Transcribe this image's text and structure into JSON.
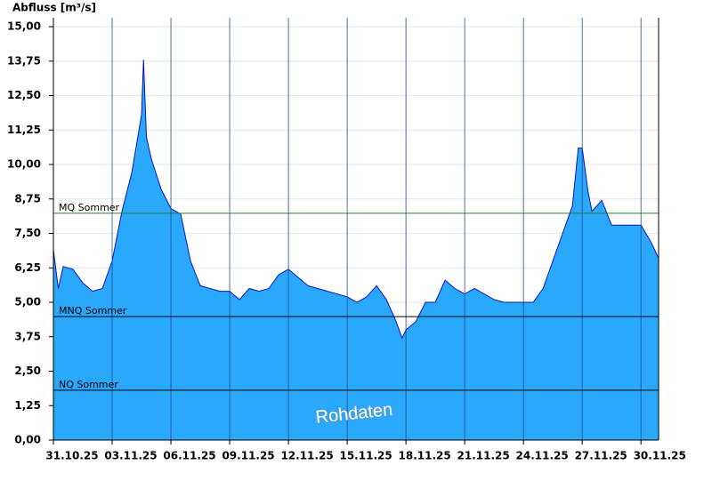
{
  "chart_data": {
    "type": "area",
    "y_label": "Abfluss [m³/s]",
    "watermark": "Rohdaten",
    "color": "#29a8fc",
    "line_color": "#0a14c8",
    "x": [
      0,
      0.25,
      0.5,
      1,
      1.5,
      2,
      2.5,
      3,
      3.5,
      4,
      4.5,
      4.6,
      4.75,
      5,
      5.5,
      6,
      6.5,
      7,
      7.5,
      8,
      8.5,
      9,
      9.5,
      10,
      10.5,
      11,
      11.5,
      12,
      12.5,
      13,
      13.5,
      14,
      14.5,
      15,
      15.5,
      16,
      16.5,
      17,
      17.5,
      17.8,
      18,
      18.5,
      19,
      19.5,
      20,
      20.5,
      21,
      21.5,
      22,
      22.5,
      23,
      23.5,
      24,
      24.5,
      25,
      25.5,
      26,
      26.5,
      26.8,
      27,
      27.3,
      27.5,
      28,
      28.5,
      29,
      29.5,
      30,
      30.5,
      30.9
    ],
    "values": [
      6.9,
      5.5,
      6.3,
      6.2,
      5.7,
      5.4,
      5.5,
      6.5,
      8.3,
      9.7,
      11.8,
      13.8,
      11.0,
      10.2,
      9.1,
      8.4,
      8.2,
      6.5,
      5.6,
      5.5,
      5.4,
      5.4,
      5.1,
      5.5,
      5.4,
      5.5,
      6.0,
      6.2,
      5.9,
      5.6,
      5.5,
      5.4,
      5.3,
      5.2,
      5.0,
      5.2,
      5.6,
      5.1,
      4.3,
      3.7,
      4.0,
      4.3,
      5.0,
      5.0,
      5.8,
      5.5,
      5.3,
      5.5,
      5.3,
      5.1,
      5.0,
      5.0,
      5.0,
      5.0,
      5.5,
      6.5,
      7.5,
      8.5,
      10.6,
      10.6,
      9.0,
      8.3,
      8.7,
      7.8,
      7.8,
      7.8,
      7.8,
      7.2,
      6.6
    ],
    "xlim": [
      0,
      30.9
    ],
    "xticks": [
      {
        "value": 0,
        "label": "31.10.25"
      },
      {
        "value": 3,
        "label": "03.11.25"
      },
      {
        "value": 6,
        "label": "06.11.25"
      },
      {
        "value": 9,
        "label": "09.11.25"
      },
      {
        "value": 12,
        "label": "12.11.25"
      },
      {
        "value": 15,
        "label": "15.11.25"
      },
      {
        "value": 18,
        "label": "18.11.25"
      },
      {
        "value": 21,
        "label": "21.11.25"
      },
      {
        "value": 24,
        "label": "24.11.25"
      },
      {
        "value": 27,
        "label": "27.11.25"
      },
      {
        "value": 30,
        "label": "30.11.25"
      }
    ],
    "ylim": [
      0,
      15
    ],
    "yticks": [
      {
        "value": 0,
        "label": "0,00"
      },
      {
        "value": 1.25,
        "label": "1,25"
      },
      {
        "value": 2.5,
        "label": "2,50"
      },
      {
        "value": 3.75,
        "label": "3,75"
      },
      {
        "value": 5,
        "label": "5,00"
      },
      {
        "value": 6.25,
        "label": "6,25"
      },
      {
        "value": 7.5,
        "label": "7,50"
      },
      {
        "value": 8.75,
        "label": "8,75"
      },
      {
        "value": 10,
        "label": "10,00"
      },
      {
        "value": 11.25,
        "label": "11,25"
      },
      {
        "value": 12.5,
        "label": "12,50"
      },
      {
        "value": 13.75,
        "label": "13,75"
      },
      {
        "value": 15,
        "label": "15,00"
      }
    ],
    "grid": true,
    "reference_lines": [
      {
        "label": "MQ Sommer",
        "value": 8.23,
        "color": "#2e7d32"
      },
      {
        "label": "MNQ Sommer",
        "value": 4.48,
        "color": "#000000"
      },
      {
        "label": "NQ Sommer",
        "value": 1.81,
        "color": "#000000"
      }
    ]
  }
}
